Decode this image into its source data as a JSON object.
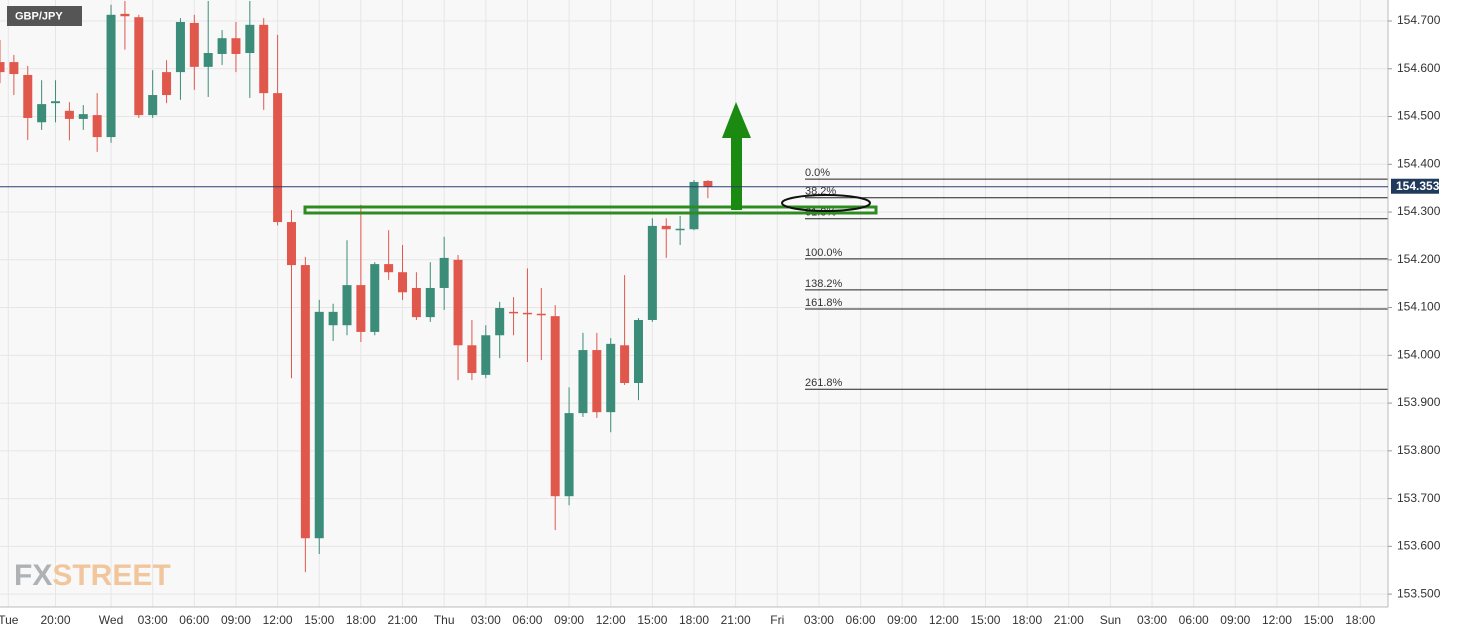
{
  "chart_data": {
    "type": "candlestick",
    "symbol": "GBP/JPY",
    "logo": [
      "FX",
      "STREET"
    ],
    "up_color": "#3b8c78",
    "down_color": "#e0574c",
    "grid": true,
    "x": [
      -8,
      -7,
      -6,
      -5,
      -4,
      -3,
      -2,
      -1,
      0,
      1,
      2,
      3,
      4,
      5,
      6,
      7,
      8,
      9,
      10,
      11,
      12,
      13,
      14,
      15,
      16,
      17,
      18,
      19,
      20,
      21,
      22,
      23,
      24,
      25,
      26,
      27,
      28,
      29,
      30,
      31,
      32,
      33,
      34,
      35,
      36,
      37,
      38,
      39,
      40,
      41,
      42,
      43
    ],
    "open": [
      154.614,
      154.614,
      154.587,
      154.488,
      154.528,
      154.512,
      154.495,
      154.503,
      154.457,
      154.715,
      154.708,
      154.503,
      154.593,
      154.593,
      154.696,
      154.604,
      154.631,
      154.664,
      154.633,
      154.692,
      154.549,
      154.279,
      154.189,
      153.617,
      154.063,
      154.063,
      154.147,
      154.049,
      154.191,
      154.174,
      154.141,
      154.08,
      154.141,
      154.2,
      154.021,
      153.959,
      154.042,
      154.091,
      154.089,
      154.087,
      154.082,
      153.705,
      153.879,
      154.011,
      153.881,
      154.021,
      153.942,
      154.074,
      154.271,
      154.264,
      154.264,
      154.365
    ],
    "high": [
      154.66,
      154.629,
      154.606,
      154.576,
      154.576,
      154.53,
      154.524,
      154.549,
      154.734,
      154.742,
      154.713,
      154.597,
      154.618,
      154.706,
      154.713,
      154.742,
      154.681,
      154.698,
      154.742,
      154.706,
      154.671,
      154.304,
      154.206,
      154.116,
      154.108,
      154.241,
      154.315,
      154.195,
      154.262,
      154.231,
      154.174,
      154.195,
      154.248,
      154.21,
      154.074,
      154.063,
      154.112,
      154.122,
      154.182,
      154.141,
      154.105,
      153.933,
      154.047,
      154.047,
      154.036,
      154.168,
      154.078,
      154.287,
      154.287,
      154.292,
      154.367,
      154.367
    ],
    "low": [
      154.57,
      154.545,
      154.451,
      154.472,
      154.488,
      154.45,
      154.472,
      154.426,
      154.445,
      154.64,
      154.497,
      154.497,
      154.528,
      154.535,
      154.556,
      154.541,
      154.608,
      154.593,
      154.539,
      154.514,
      154.272,
      153.952,
      153.546,
      153.584,
      154.03,
      154.042,
      154.028,
      154.042,
      154.158,
      154.116,
      154.074,
      154.07,
      154.095,
      153.948,
      153.948,
      153.952,
      153.994,
      154.042,
      153.986,
      153.99,
      153.634,
      153.686,
      153.871,
      153.869,
      153.839,
      153.938,
      153.906,
      154.07,
      154.204,
      154.231,
      154.262,
      154.329
    ],
    "close": [
      154.593,
      154.589,
      154.497,
      154.526,
      154.532,
      154.495,
      154.505,
      154.457,
      154.713,
      154.71,
      154.503,
      154.545,
      154.545,
      154.698,
      154.604,
      154.633,
      154.664,
      154.631,
      154.692,
      154.549,
      154.279,
      154.189,
      153.617,
      154.091,
      154.091,
      154.147,
      154.049,
      154.191,
      154.174,
      154.132,
      154.08,
      154.141,
      154.204,
      154.021,
      153.963,
      154.042,
      154.099,
      154.089,
      154.087,
      154.085,
      153.705,
      153.879,
      154.011,
      153.881,
      154.024,
      153.942,
      154.074,
      154.271,
      154.264,
      154.265,
      154.363,
      154.353
    ],
    "xlim": [
      -8,
      92
    ],
    "ylim": [
      153.473,
      154.744
    ],
    "xticks": [
      {
        "value": -7.4,
        "label": "Tue"
      },
      {
        "value": -4,
        "label": "20:00"
      },
      {
        "value": 0,
        "label": "Wed"
      },
      {
        "value": 3,
        "label": "03:00"
      },
      {
        "value": 6,
        "label": "06:00"
      },
      {
        "value": 9,
        "label": "09:00"
      },
      {
        "value": 12,
        "label": "12:00"
      },
      {
        "value": 15,
        "label": "15:00"
      },
      {
        "value": 18,
        "label": "18:00"
      },
      {
        "value": 21,
        "label": "21:00"
      },
      {
        "value": 24,
        "label": "Thu"
      },
      {
        "value": 27,
        "label": "03:00"
      },
      {
        "value": 30,
        "label": "06:00"
      },
      {
        "value": 33,
        "label": "09:00"
      },
      {
        "value": 36,
        "label": "12:00"
      },
      {
        "value": 39,
        "label": "15:00"
      },
      {
        "value": 42,
        "label": "18:00"
      },
      {
        "value": 45,
        "label": "21:00"
      },
      {
        "value": 48,
        "label": "Fri"
      },
      {
        "value": 51,
        "label": "03:00"
      },
      {
        "value": 54,
        "label": "06:00"
      },
      {
        "value": 57,
        "label": "09:00"
      },
      {
        "value": 60,
        "label": "12:00"
      },
      {
        "value": 63,
        "label": "15:00"
      },
      {
        "value": 66,
        "label": "18:00"
      },
      {
        "value": 69,
        "label": "21:00"
      },
      {
        "value": 72,
        "label": "Sun"
      },
      {
        "value": 75,
        "label": "03:00"
      },
      {
        "value": 78,
        "label": "06:00"
      },
      {
        "value": 81,
        "label": "09:00"
      },
      {
        "value": 84,
        "label": "12:00"
      },
      {
        "value": 87,
        "label": "15:00"
      },
      {
        "value": 90,
        "label": "18:00"
      }
    ],
    "yticks": [
      {
        "value": 154.7,
        "label": "154.700"
      },
      {
        "value": 154.6,
        "label": "154.600"
      },
      {
        "value": 154.5,
        "label": "154.500"
      },
      {
        "value": 154.4,
        "label": "154.400"
      },
      {
        "value": 154.3,
        "label": "154.300"
      },
      {
        "value": 154.2,
        "label": "154.200"
      },
      {
        "value": 154.1,
        "label": "154.100"
      },
      {
        "value": 154.0,
        "label": "154.000"
      },
      {
        "value": 153.9,
        "label": "153.900"
      },
      {
        "value": 153.8,
        "label": "153.800"
      },
      {
        "value": 153.7,
        "label": "153.700"
      },
      {
        "value": 153.6,
        "label": "153.600"
      },
      {
        "value": 153.5,
        "label": "153.500"
      }
    ],
    "last_price": 154.353,
    "fib_levels": [
      {
        "label": "0.0%",
        "value": 154.369
      },
      {
        "label": "38.2%",
        "value": 154.33
      },
      {
        "label": "61.8%",
        "value": 154.286
      },
      {
        "label": "100.0%",
        "value": 154.202
      },
      {
        "label": "138.2%",
        "value": 154.137
      },
      {
        "label": "161.8%",
        "value": 154.097
      },
      {
        "label": "261.8%",
        "value": 153.929
      }
    ]
  }
}
